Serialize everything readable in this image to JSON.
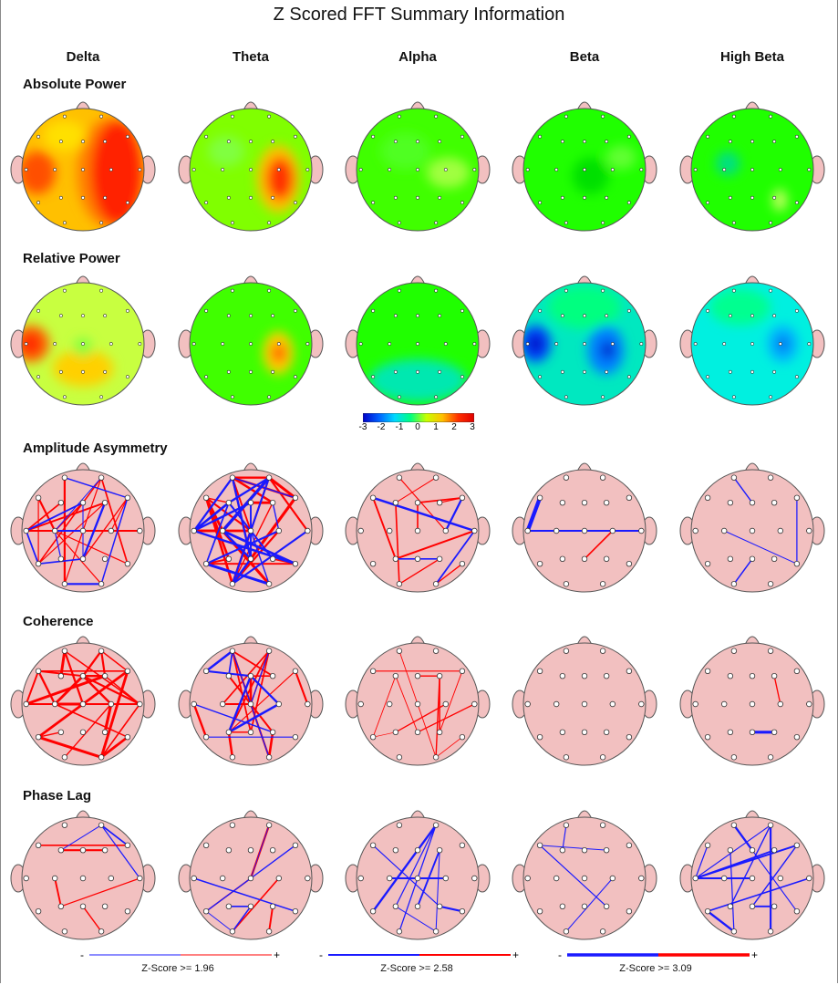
{
  "title": "Z Scored FFT Summary Information",
  "bands": [
    "Delta",
    "Theta",
    "Alpha",
    "Beta",
    "High Beta"
  ],
  "rows": [
    {
      "label": "Absolute Power",
      "kind": "power"
    },
    {
      "label": "Relative Power",
      "kind": "power"
    },
    {
      "label": "Amplitude Asymmetry",
      "kind": "connect"
    },
    {
      "label": "Coherence",
      "kind": "connect"
    },
    {
      "label": "Phase Lag",
      "kind": "connect"
    }
  ],
  "colorbar": {
    "ticks": [
      "-3",
      "-2",
      "-1",
      "0",
      "1",
      "2",
      "3"
    ],
    "colors": [
      "#0000c8",
      "#0060ff",
      "#00d8ff",
      "#00ff80",
      "#c8ff00",
      "#ffc000",
      "#ff3000",
      "#e00000"
    ]
  },
  "zscore_legend": [
    {
      "minus": "-",
      "plus": "+",
      "text": "Z-Score >= 1.96",
      "width": 1
    },
    {
      "minus": "-",
      "plus": "+",
      "text": "Z-Score >= 2.58",
      "width": 2
    },
    {
      "minus": "-",
      "plus": "+",
      "text": "Z-Score >= 3.09",
      "width": 3.5
    }
  ],
  "line_colors": {
    "negative": "#1a1aff",
    "positive": "#ff0000"
  },
  "head_fill_connect": "#f2c0c0"
}
